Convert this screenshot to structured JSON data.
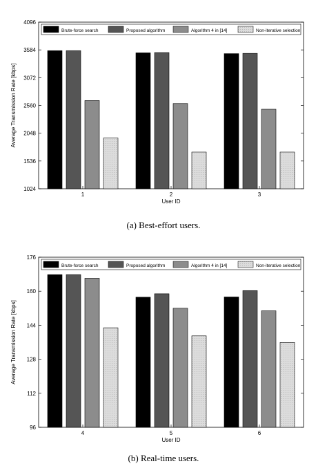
{
  "chart_data": [
    {
      "type": "bar",
      "categories": [
        "1",
        "2",
        "3"
      ],
      "series": [
        {
          "name": "Brute-force search",
          "values": [
            3570,
            3530,
            3515
          ],
          "color": "#000000"
        },
        {
          "name": "Proposed algorithm",
          "values": [
            3570,
            3535,
            3520
          ],
          "color": "#555555"
        },
        {
          "name": "Algorithm 4 in [14]",
          "values": [
            2650,
            2595,
            2490
          ],
          "color": "#8c8c8c"
        },
        {
          "name": "Non-iterative selection",
          "values": [
            1960,
            1700,
            1700
          ],
          "color": "#d6d6d6"
        }
      ],
      "title": "",
      "xlabel": "User ID",
      "ylabel": "Average Transmission Rate [kbps]",
      "ylim": [
        1024,
        4096
      ],
      "yticks": [
        "1024",
        "1536",
        "2048",
        "2560",
        "3072",
        "3584",
        "4096"
      ],
      "grid": false,
      "legend": "top",
      "caption": "(a) Best-effort users."
    },
    {
      "type": "bar",
      "categories": [
        "4",
        "5",
        "6"
      ],
      "series": [
        {
          "name": "Brute-force search",
          "values": [
            167.8,
            157.2,
            157.3
          ],
          "color": "#000000"
        },
        {
          "name": "Proposed algorithm",
          "values": [
            167.8,
            158.8,
            160.3
          ],
          "color": "#555555"
        },
        {
          "name": "Algorithm 4 in [14]",
          "values": [
            166.1,
            152.0,
            150.8
          ],
          "color": "#8c8c8c"
        },
        {
          "name": "Non-iterative selection",
          "values": [
            142.8,
            139.0,
            135.9
          ],
          "color": "#d6d6d6"
        }
      ],
      "title": "",
      "xlabel": "User ID",
      "ylabel": "Average Transmission Rate [kbps]",
      "ylim": [
        96,
        176
      ],
      "yticks": [
        "96",
        "112",
        "128",
        "144",
        "160",
        "176"
      ],
      "grid": false,
      "legend": "top",
      "caption": "(b) Real-time users."
    }
  ]
}
